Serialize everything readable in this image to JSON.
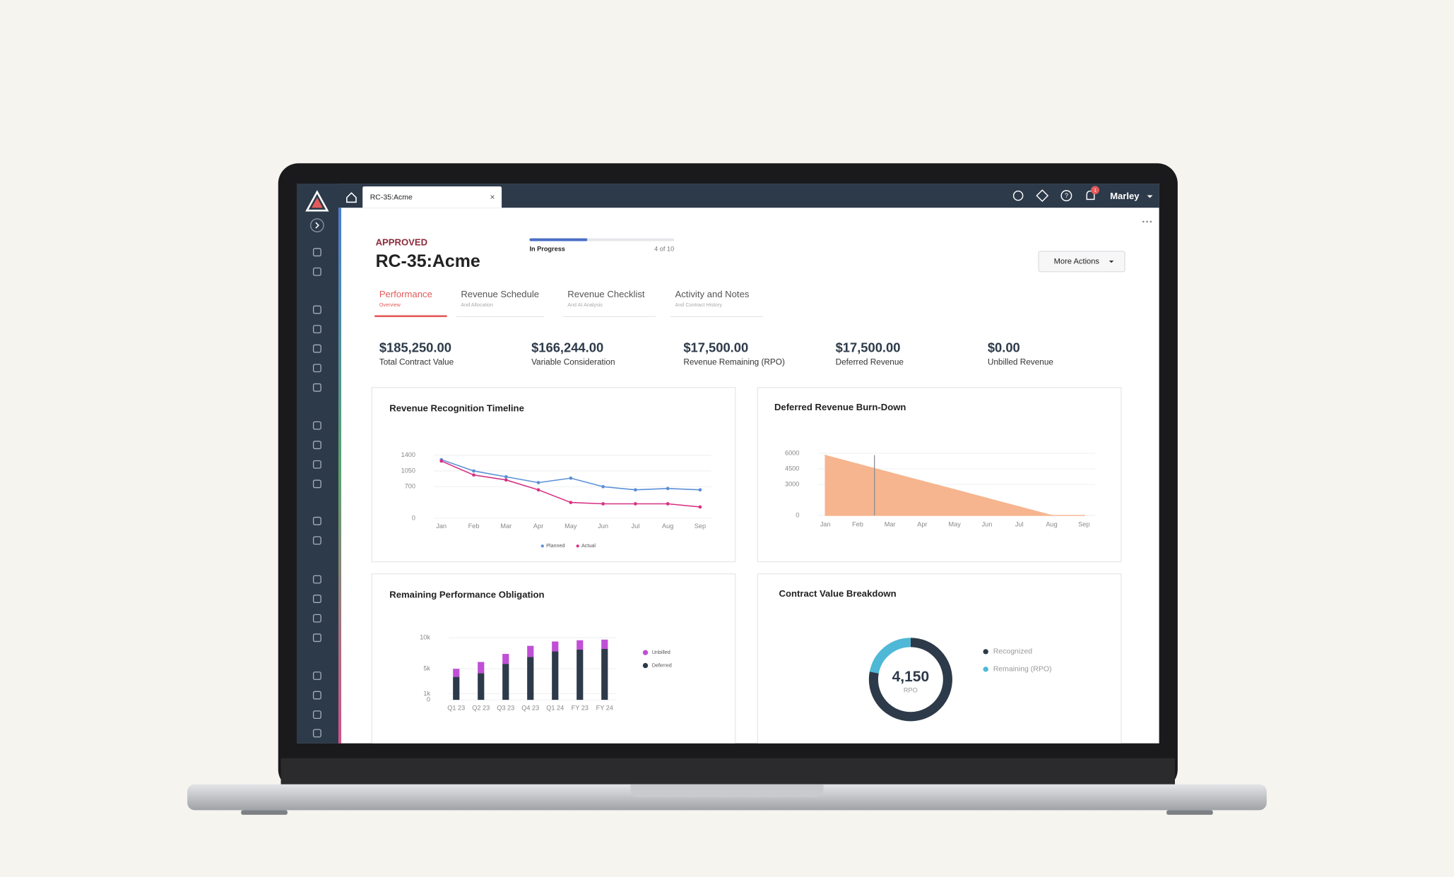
{
  "app_bar": {
    "tab": "RC-35:Acme",
    "close": "×",
    "notifications": "1",
    "user": "Marley"
  },
  "header": {
    "status": "APPROVED",
    "title": "RC-35:Acme",
    "progress": {
      "label": "In Progress",
      "value": 4,
      "max": 10,
      "text": "4 of 10"
    },
    "actions": "More Actions"
  },
  "tabs": [
    {
      "title": "Performance",
      "subtitle": "Overview"
    },
    {
      "title": "Revenue Schedule",
      "subtitle": "And Allocation"
    },
    {
      "title": "Revenue Checklist",
      "subtitle": "And AI Analysis"
    },
    {
      "title": "Activity and Notes",
      "subtitle": "And Contract History"
    }
  ],
  "kpis": [
    {
      "value": "$185,250.00",
      "label": "Total Contract Value"
    },
    {
      "value": "$166,244.00",
      "label": "Variable Consideration"
    },
    {
      "value": "$17,500.00",
      "label": "Revenue Remaining (RPO)"
    },
    {
      "value": "$17,500.00",
      "label": "Deferred Revenue"
    },
    {
      "value": "$0.00",
      "label": "Unbilled Revenue"
    }
  ],
  "chart_data": [
    {
      "type": "line",
      "title": "Revenue Recognition Timeline",
      "categories": [
        "Jan",
        "Feb",
        "Mar",
        "Apr",
        "May",
        "Jun",
        "Jul",
        "Aug",
        "Sep"
      ],
      "series": [
        {
          "name": "Planned",
          "color": "#5b8fd6",
          "values": [
            1300,
            1050,
            920,
            790,
            890,
            700,
            630,
            660,
            630
          ]
        },
        {
          "name": "Actual",
          "color": "#d63384",
          "values": [
            1270,
            960,
            850,
            630,
            350,
            320,
            320,
            320,
            250
          ]
        }
      ],
      "ylim": [
        0,
        1400
      ],
      "yticks": [
        0,
        700,
        1050,
        1400
      ]
    },
    {
      "type": "area",
      "title": "Deferred Revenue Burn-Down",
      "categories": [
        "Jan",
        "Feb",
        "Mar",
        "Apr",
        "May",
        "Jun",
        "Jul",
        "Aug",
        "Sep"
      ],
      "values": [
        5800,
        4970,
        4140,
        3310,
        2490,
        1660,
        830,
        0,
        0
      ],
      "color": "#f6b58e",
      "ylim": [
        0,
        6000
      ],
      "yticks": [
        0,
        3000,
        4500,
        6000
      ]
    },
    {
      "type": "stacked_bar",
      "title": "Remaining Performance Obligation",
      "categories": [
        "Q1 23",
        "Q2 23",
        "Q3 23",
        "Q4 23",
        "Q1 24",
        "FY 23",
        "FY 24"
      ],
      "series": [
        {
          "name": "Deferred",
          "color": "#2d3a4a",
          "values": [
            3700,
            4300,
            5800,
            6900,
            7800,
            8100,
            8200
          ]
        },
        {
          "name": "Unbilled",
          "color": "#c04fd6",
          "values": [
            1300,
            1800,
            1600,
            1800,
            1600,
            1500,
            1500
          ]
        }
      ],
      "ylim": [
        0,
        10000
      ],
      "yticks": [
        0,
        {
          "value": 1000,
          "label": "1k"
        },
        {
          "value": 5000,
          "label": "5k"
        },
        {
          "value": 10000,
          "label": "10k"
        }
      ]
    },
    {
      "type": "donut",
      "title": "Contract Value Breakdown",
      "center_label": "4,150",
      "center_sublabel": "RPO",
      "series": [
        {
          "name": "Recognized",
          "color": "#2d3a4a",
          "values": [
            78
          ]
        },
        {
          "name": "Remaining (RPO)",
          "color": "#4fb8d6",
          "values": [
            22
          ]
        }
      ]
    }
  ]
}
